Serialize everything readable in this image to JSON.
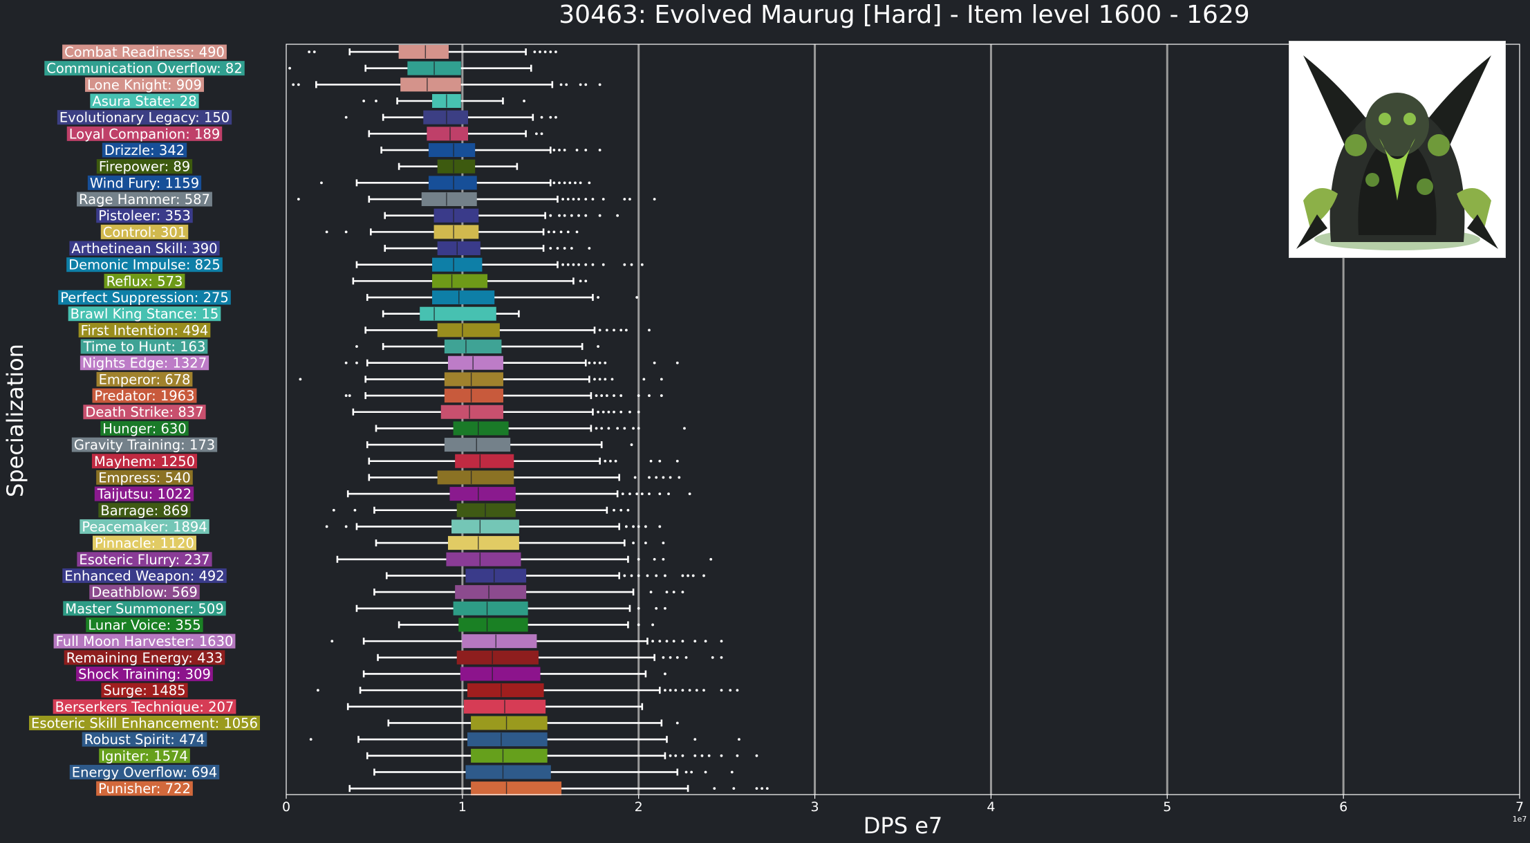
{
  "chart_data": {
    "type": "box",
    "title": "30463: Evolved Maurug [Hard] - Item level 1600 - 1629",
    "xlabel": "DPS e7",
    "ylabel": "Specialization",
    "x_offset_label": "1e7",
    "xlim": [
      0,
      7
    ],
    "xticks": [
      "0",
      "1",
      "2",
      "3",
      "4",
      "5",
      "6",
      "7"
    ],
    "grid": "vertical",
    "series": [
      {
        "label": "Combat Readiness: 490",
        "color": "#d4938b",
        "wlo": 0.36,
        "q1": 0.64,
        "med": 0.79,
        "q3": 0.92,
        "whi": 1.36,
        "fliers": [
          0.13,
          0.16,
          1.41,
          1.44,
          1.47,
          1.5,
          1.53
        ]
      },
      {
        "label": "Communication Overflow: 82",
        "color": "#31a090",
        "wlo": 0.45,
        "q1": 0.69,
        "med": 0.84,
        "q3": 0.99,
        "whi": 1.39,
        "fliers": [
          0.02
        ]
      },
      {
        "label": "Lone Knight: 909",
        "color": "#d4938b",
        "wlo": 0.17,
        "q1": 0.65,
        "med": 0.8,
        "q3": 0.99,
        "whi": 1.51,
        "fliers": [
          0.04,
          0.07,
          1.56,
          1.59,
          1.67,
          1.7,
          1.78
        ]
      },
      {
        "label": "Asura State: 28",
        "color": "#47c1b1",
        "wlo": 0.63,
        "q1": 0.83,
        "med": 0.91,
        "q3": 0.99,
        "whi": 1.23,
        "fliers": [
          0.44,
          0.51,
          1.35
        ]
      },
      {
        "label": "Evolutionary Legacy: 150",
        "color": "#3c3f84",
        "wlo": 0.55,
        "q1": 0.78,
        "med": 0.91,
        "q3": 1.03,
        "whi": 1.4,
        "fliers": [
          0.34,
          1.45,
          1.5,
          1.53
        ]
      },
      {
        "label": "Loyal Companion: 189",
        "color": "#bf4069",
        "wlo": 0.47,
        "q1": 0.8,
        "med": 0.93,
        "q3": 1.03,
        "whi": 1.36,
        "fliers": [
          1.42,
          1.45
        ]
      },
      {
        "label": "Drizzle: 342",
        "color": "#174f98",
        "wlo": 0.54,
        "q1": 0.81,
        "med": 0.95,
        "q3": 1.07,
        "whi": 1.5,
        "fliers": [
          1.52,
          1.55,
          1.58,
          1.65,
          1.7,
          1.78
        ]
      },
      {
        "label": "Firepower: 89",
        "color": "#3d5a0f",
        "wlo": 0.64,
        "q1": 0.86,
        "med": 0.95,
        "q3": 1.07,
        "whi": 1.31,
        "fliers": []
      },
      {
        "label": "Wind Fury: 1159",
        "color": "#174f98",
        "wlo": 0.4,
        "q1": 0.81,
        "med": 0.95,
        "q3": 1.08,
        "whi": 1.5,
        "fliers": [
          0.2,
          1.52,
          1.55,
          1.58,
          1.61,
          1.64,
          1.67,
          1.72
        ]
      },
      {
        "label": "Rage Hammer: 587",
        "color": "#74818a",
        "wlo": 0.47,
        "q1": 0.77,
        "med": 0.91,
        "q3": 1.08,
        "whi": 1.54,
        "fliers": [
          0.07,
          1.57,
          1.6,
          1.63,
          1.66,
          1.7,
          1.74,
          1.8,
          1.92,
          1.95,
          2.09
        ]
      },
      {
        "label": "Pistoleer: 353",
        "color": "#3a3b8a",
        "wlo": 0.56,
        "q1": 0.84,
        "med": 0.95,
        "q3": 1.09,
        "whi": 1.47,
        "fliers": [
          1.5,
          1.55,
          1.58,
          1.62,
          1.66,
          1.7,
          1.78,
          1.88
        ]
      },
      {
        "label": "Control: 301",
        "color": "#d1b94e",
        "wlo": 0.48,
        "q1": 0.84,
        "med": 0.95,
        "q3": 1.09,
        "whi": 1.46,
        "fliers": [
          0.23,
          0.34,
          1.49,
          1.52,
          1.56,
          1.6,
          1.65
        ]
      },
      {
        "label": "Arthetinean Skill: 390",
        "color": "#3a3b8a",
        "wlo": 0.56,
        "q1": 0.86,
        "med": 0.97,
        "q3": 1.1,
        "whi": 1.46,
        "fliers": [
          1.5,
          1.54,
          1.58,
          1.62,
          1.72
        ]
      },
      {
        "label": "Demonic Impulse: 825",
        "color": "#0e7fa7",
        "wlo": 0.4,
        "q1": 0.83,
        "med": 0.95,
        "q3": 1.11,
        "whi": 1.54,
        "fliers": [
          1.57,
          1.6,
          1.63,
          1.66,
          1.7,
          1.74,
          1.8,
          1.92,
          1.96,
          2.02
        ]
      },
      {
        "label": "Reflux: 573",
        "color": "#6e9a18",
        "wlo": 0.38,
        "q1": 0.83,
        "med": 0.94,
        "q3": 1.14,
        "whi": 1.63,
        "fliers": [
          1.67,
          1.7
        ]
      },
      {
        "label": "Perfect Suppression: 275",
        "color": "#0e7fa7",
        "wlo": 0.46,
        "q1": 0.83,
        "med": 0.98,
        "q3": 1.18,
        "whi": 1.74,
        "fliers": [
          1.77,
          1.99
        ]
      },
      {
        "label": "Brawl King Stance: 15",
        "color": "#47c1b1",
        "wlo": 0.55,
        "q1": 0.76,
        "med": 0.84,
        "q3": 1.19,
        "whi": 1.32,
        "fliers": []
      },
      {
        "label": "First Intention: 494",
        "color": "#9a8e1e",
        "wlo": 0.45,
        "q1": 0.86,
        "med": 1.0,
        "q3": 1.21,
        "whi": 1.75,
        "fliers": [
          1.78,
          1.82,
          1.86,
          1.9,
          1.93,
          2.06
        ]
      },
      {
        "label": "Time to Hunt: 163",
        "color": "#3fa395",
        "wlo": 0.55,
        "q1": 0.9,
        "med": 1.02,
        "q3": 1.22,
        "whi": 1.68,
        "fliers": [
          0.4,
          1.77
        ]
      },
      {
        "label": "Nights Edge: 1327",
        "color": "#bd7cc7",
        "wlo": 0.46,
        "q1": 0.92,
        "med": 1.06,
        "q3": 1.23,
        "whi": 1.7,
        "fliers": [
          0.34,
          0.4,
          1.72,
          1.75,
          1.78,
          1.81,
          2.09,
          2.22
        ]
      },
      {
        "label": "Emperor: 678",
        "color": "#a0822d",
        "wlo": 0.45,
        "q1": 0.9,
        "med": 1.05,
        "q3": 1.23,
        "whi": 1.72,
        "fliers": [
          0.08,
          1.75,
          1.78,
          1.81,
          1.85,
          2.03,
          2.13
        ]
      },
      {
        "label": "Predator: 1963",
        "color": "#c85a3c",
        "wlo": 0.45,
        "q1": 0.9,
        "med": 1.05,
        "q3": 1.23,
        "whi": 1.73,
        "fliers": [
          0.34,
          0.36,
          1.76,
          1.79,
          1.82,
          1.86,
          1.9,
          2.0,
          2.06,
          2.13
        ]
      },
      {
        "label": "Death Strike: 837",
        "color": "#c8506e",
        "wlo": 0.38,
        "q1": 0.88,
        "med": 1.04,
        "q3": 1.23,
        "whi": 1.74,
        "fliers": [
          1.77,
          1.8,
          1.83,
          1.86,
          1.9,
          1.95,
          2.0
        ]
      },
      {
        "label": "Hunger: 630",
        "color": "#1a7a28",
        "wlo": 0.51,
        "q1": 0.95,
        "med": 1.09,
        "q3": 1.26,
        "whi": 1.73,
        "fliers": [
          1.76,
          1.79,
          1.83,
          1.88,
          1.92,
          1.97,
          2.0,
          2.26
        ]
      },
      {
        "label": "Gravity Training: 173",
        "color": "#74818a",
        "wlo": 0.46,
        "q1": 0.9,
        "med": 1.08,
        "q3": 1.27,
        "whi": 1.79,
        "fliers": [
          1.96
        ]
      },
      {
        "label": "Mayhem: 1250",
        "color": "#c02a42",
        "wlo": 0.47,
        "q1": 0.96,
        "med": 1.1,
        "q3": 1.29,
        "whi": 1.78,
        "fliers": [
          1.81,
          1.84,
          1.87,
          2.07,
          2.12,
          2.22
        ]
      },
      {
        "label": "Empress: 540",
        "color": "#8b7224",
        "wlo": 0.47,
        "q1": 0.86,
        "med": 1.05,
        "q3": 1.29,
        "whi": 1.89,
        "fliers": [
          1.98,
          2.06,
          2.1,
          2.14,
          2.18,
          2.23
        ]
      },
      {
        "label": "Taijutsu: 1022",
        "color": "#8a1a8e",
        "wlo": 0.35,
        "q1": 0.93,
        "med": 1.09,
        "q3": 1.3,
        "whi": 1.88,
        "fliers": [
          1.91,
          1.95,
          1.99,
          2.02,
          2.06,
          2.12,
          2.17,
          2.29
        ]
      },
      {
        "label": "Barrage: 869",
        "color": "#3f5a14",
        "wlo": 0.5,
        "q1": 0.97,
        "med": 1.13,
        "q3": 1.3,
        "whi": 1.82,
        "fliers": [
          0.27,
          0.39,
          1.86,
          1.9,
          1.94
        ]
      },
      {
        "label": "Peacemaker: 1894",
        "color": "#74c6b6",
        "wlo": 0.4,
        "q1": 0.94,
        "med": 1.1,
        "q3": 1.32,
        "whi": 1.89,
        "fliers": [
          0.23,
          0.34,
          1.93,
          1.97,
          2.0,
          2.04,
          2.12
        ]
      },
      {
        "label": "Pinnacle: 1120",
        "color": "#e1cb64",
        "wlo": 0.51,
        "q1": 0.92,
        "med": 1.09,
        "q3": 1.32,
        "whi": 1.92,
        "fliers": [
          1.97,
          2.04,
          2.14
        ]
      },
      {
        "label": "Esoteric Flurry: 237",
        "color": "#8a3c96",
        "wlo": 0.29,
        "q1": 0.91,
        "med": 1.1,
        "q3": 1.33,
        "whi": 1.94,
        "fliers": [
          2.0,
          2.09,
          2.14,
          2.41
        ]
      },
      {
        "label": "Enhanced Weapon: 492",
        "color": "#3a3b8a",
        "wlo": 0.57,
        "q1": 1.02,
        "med": 1.18,
        "q3": 1.36,
        "whi": 1.89,
        "fliers": [
          1.92,
          1.96,
          2.0,
          2.05,
          2.1,
          2.15,
          2.25,
          2.28,
          2.31,
          2.37
        ]
      },
      {
        "label": "Deathblow: 569",
        "color": "#8c4b8e",
        "wlo": 0.5,
        "q1": 0.96,
        "med": 1.15,
        "q3": 1.36,
        "whi": 1.97,
        "fliers": [
          2.07,
          2.16,
          2.2,
          2.25
        ]
      },
      {
        "label": "Master Summoner: 509",
        "color": "#2e9c86",
        "wlo": 0.4,
        "q1": 0.95,
        "med": 1.14,
        "q3": 1.37,
        "whi": 1.95,
        "fliers": [
          2.0,
          2.1,
          2.15
        ]
      },
      {
        "label": "Lunar Voice: 355",
        "color": "#1a8024",
        "wlo": 0.64,
        "q1": 0.98,
        "med": 1.14,
        "q3": 1.37,
        "whi": 1.94,
        "fliers": [
          2.0,
          2.08
        ]
      },
      {
        "label": "Full Moon Harvester: 1630",
        "color": "#b678c0",
        "wlo": 0.44,
        "q1": 1.0,
        "med": 1.19,
        "q3": 1.42,
        "whi": 2.05,
        "fliers": [
          0.26,
          2.08,
          2.12,
          2.16,
          2.2,
          2.25,
          2.32,
          2.38,
          2.47
        ]
      },
      {
        "label": "Remaining Energy: 433",
        "color": "#8e1e1e",
        "wlo": 0.52,
        "q1": 0.97,
        "med": 1.17,
        "q3": 1.43,
        "whi": 2.09,
        "fliers": [
          2.14,
          2.18,
          2.22,
          2.27,
          2.42,
          2.47
        ]
      },
      {
        "label": "Shock Training: 309",
        "color": "#8c148c",
        "wlo": 0.44,
        "q1": 0.99,
        "med": 1.17,
        "q3": 1.44,
        "whi": 2.04,
        "fliers": [
          2.15
        ]
      },
      {
        "label": "Surge: 1485",
        "color": "#a01e1e",
        "wlo": 0.42,
        "q1": 1.03,
        "med": 1.22,
        "q3": 1.46,
        "whi": 2.12,
        "fliers": [
          0.18,
          2.15,
          2.18,
          2.21,
          2.25,
          2.29,
          2.33,
          2.37,
          2.47,
          2.52,
          2.56
        ]
      },
      {
        "label": "Berserkers Technique: 207",
        "color": "#d63c55",
        "wlo": 0.35,
        "q1": 1.01,
        "med": 1.24,
        "q3": 1.47,
        "whi": 2.02,
        "fliers": []
      },
      {
        "label": "Esoteric Skill Enhancement: 1056",
        "color": "#9a9a1e",
        "wlo": 0.58,
        "q1": 1.05,
        "med": 1.25,
        "q3": 1.48,
        "whi": 2.13,
        "fliers": [
          2.22
        ]
      },
      {
        "label": "Robust Spirit: 474",
        "color": "#2e5a8a",
        "wlo": 0.41,
        "q1": 1.03,
        "med": 1.22,
        "q3": 1.48,
        "whi": 2.16,
        "fliers": [
          0.14,
          2.32,
          2.57
        ]
      },
      {
        "label": "Igniter: 1574",
        "color": "#66a01c",
        "wlo": 0.46,
        "q1": 1.05,
        "med": 1.23,
        "q3": 1.48,
        "whi": 2.15,
        "fliers": [
          2.18,
          2.21,
          2.25,
          2.32,
          2.36,
          2.4,
          2.47,
          2.56,
          2.67
        ]
      },
      {
        "label": "Energy Overflow: 694",
        "color": "#2e5a8a",
        "wlo": 0.5,
        "q1": 1.02,
        "med": 1.23,
        "q3": 1.5,
        "whi": 2.22,
        "fliers": [
          2.27,
          2.3,
          2.38,
          2.53
        ]
      },
      {
        "label": "Punisher: 722",
        "color": "#d2693c",
        "wlo": 0.36,
        "q1": 1.05,
        "med": 1.25,
        "q3": 1.56,
        "whi": 2.28,
        "fliers": [
          2.43,
          2.54,
          2.67,
          2.7,
          2.73
        ]
      }
    ]
  }
}
